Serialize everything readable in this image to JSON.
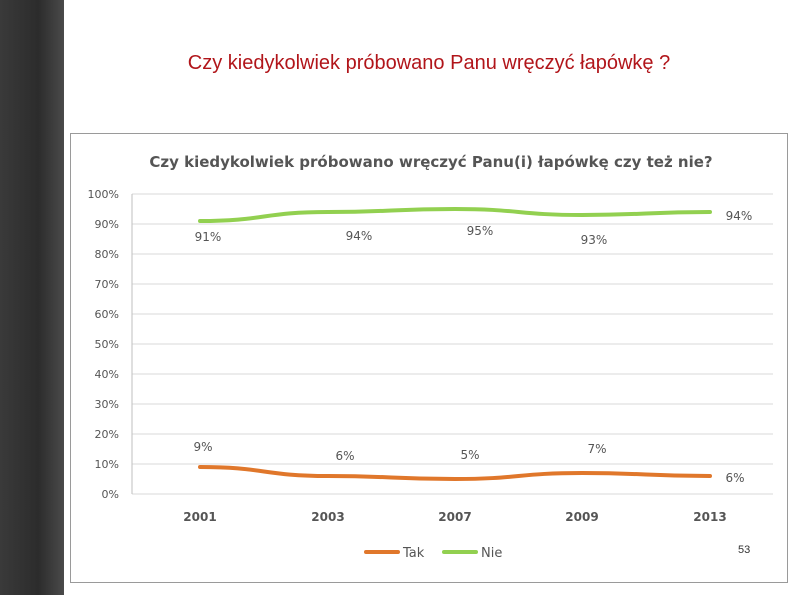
{
  "slide": {
    "title": "Czy kiedykolwiek próbowano Panu wręczyć łapówkę ?",
    "page_number": "53"
  },
  "chart_data": {
    "type": "line",
    "title": "Czy kiedykolwiek próbowano wręczyć Panu(i) łapówkę czy też nie?",
    "categories": [
      "2001",
      "2003",
      "2007",
      "2009",
      "2013"
    ],
    "series": [
      {
        "name": "Tak",
        "color": "#e0772b",
        "values": [
          9,
          6,
          5,
          7,
          6
        ],
        "labels": [
          "9%",
          "6%",
          "5%",
          "7%",
          "6%"
        ]
      },
      {
        "name": "Nie",
        "color": "#92d050",
        "values": [
          91,
          94,
          95,
          93,
          94
        ],
        "labels": [
          "91%",
          "94%",
          "95%",
          "93%",
          "94%"
        ]
      }
    ],
    "ylim": [
      0,
      100
    ],
    "yticks": [
      "0%",
      "10%",
      "20%",
      "30%",
      "40%",
      "50%",
      "60%",
      "70%",
      "80%",
      "90%",
      "100%"
    ],
    "grid": true,
    "legend_position": "bottom"
  }
}
